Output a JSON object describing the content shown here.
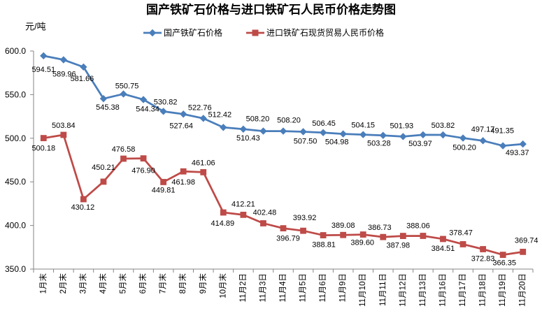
{
  "chart_data": {
    "type": "line",
    "title": "国产铁矿石价格与进口铁矿石人民币价格走势图",
    "ylabel": "元/吨",
    "categories": [
      "1月末",
      "2月末",
      "3月末",
      "4月末",
      "5月末",
      "6月末",
      "7月末",
      "8月末",
      "9月末",
      "10月末",
      "11月2日",
      "11月3日",
      "11月4日",
      "11月5日",
      "11月6日",
      "11月9日",
      "11月10日",
      "11月11日",
      "11月12日",
      "11月13日",
      "11月16日",
      "11月17日",
      "11月18日",
      "11月19日",
      "11月20日"
    ],
    "series": [
      {
        "name": "国产铁矿石价格",
        "color": "#4A7EBB",
        "marker": "diamond",
        "values": [
          594.51,
          589.96,
          581.66,
          545.38,
          550.75,
          544.34,
          530.82,
          527.64,
          522.76,
          512.42,
          510.43,
          508.2,
          508.2,
          507.5,
          506.45,
          504.98,
          504.15,
          503.28,
          501.93,
          503.97,
          503.82,
          500.2,
          497.17,
          491.35,
          493.37
        ]
      },
      {
        "name": "进口铁矿石现货贸易人民币价格",
        "color": "#BE4B48",
        "marker": "square",
        "values": [
          500.18,
          503.84,
          430.12,
          450.21,
          476.58,
          476.9,
          449.81,
          461.98,
          461.06,
          414.89,
          412.21,
          402.48,
          396.79,
          393.92,
          388.81,
          389.08,
          389.6,
          386.73,
          387.98,
          388.06,
          384.51,
          378.47,
          372.83,
          366.35,
          369.74
        ]
      }
    ],
    "ylim": [
      350,
      600
    ],
    "yticks": [
      "350.0",
      "400.0",
      "450.0",
      "500.0",
      "550.0",
      "600.0"
    ],
    "grid": false,
    "legend": "top",
    "data_labels": true
  }
}
